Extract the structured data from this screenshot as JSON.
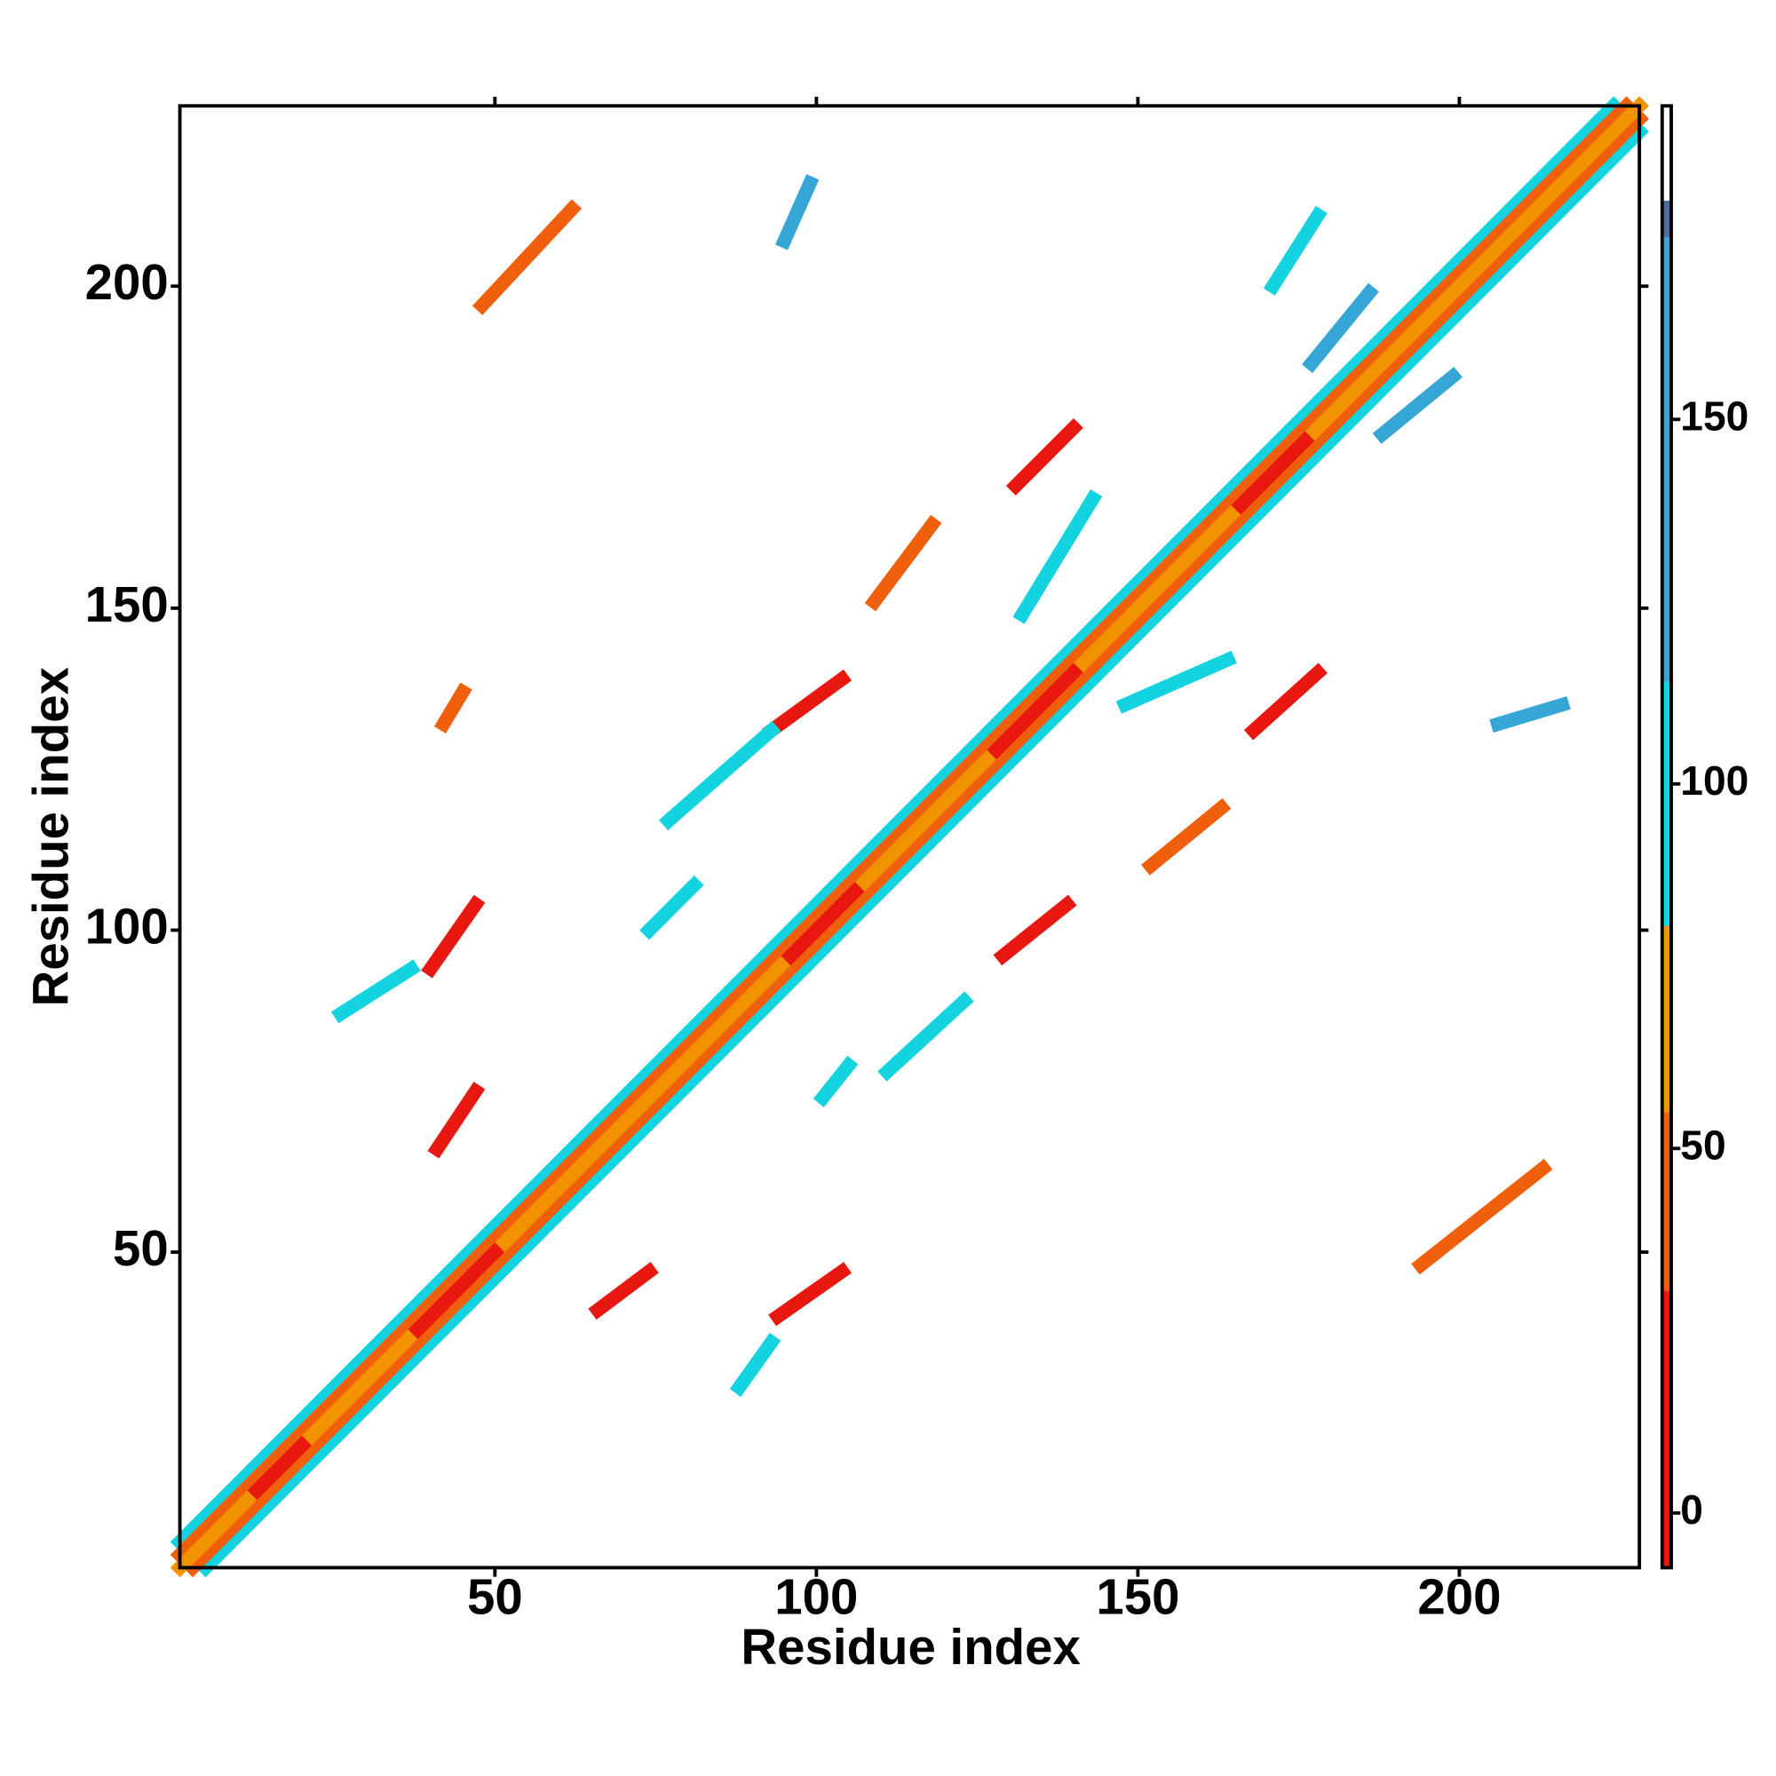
{
  "chart_data": {
    "type": "heatmap",
    "x_label": "Residue index",
    "y_label": "Residue index",
    "xlim": [
      1,
      228
    ],
    "ylim": [
      1,
      228
    ],
    "xticks": [
      50,
      100,
      150,
      200
    ],
    "yticks": [
      50,
      100,
      150,
      200
    ],
    "colorbar": {
      "lim": [
        -7.5,
        193
      ],
      "ticks": [
        0,
        50,
        100,
        150
      ],
      "bands": [
        {
          "from": -7.5,
          "to": 30.5,
          "color": "#e8170f"
        },
        {
          "from": 30.5,
          "to": 55,
          "color": "#f0600c"
        },
        {
          "from": 55,
          "to": 80.5,
          "color": "#f39200"
        },
        {
          "from": 80.5,
          "to": 114,
          "color": "#14d3e0"
        },
        {
          "from": 114,
          "to": 175,
          "color": "#35a6d6"
        },
        {
          "from": 175,
          "to": 180,
          "color": "#4a6fa5"
        },
        {
          "from": 180,
          "to": 193,
          "color": "#ffffff"
        }
      ]
    },
    "streaks": [
      {
        "x": [
          1,
          224
        ],
        "y": [
          5,
          228
        ],
        "value": 95
      },
      {
        "x": [
          5,
          228
        ],
        "y": [
          1,
          224
        ],
        "value": 95
      },
      {
        "x": [
          1,
          226
        ],
        "y": [
          3,
          228
        ],
        "value": 40
      },
      {
        "x": [
          3,
          228
        ],
        "y": [
          1,
          226
        ],
        "value": 40
      },
      {
        "x": [
          1,
          228
        ],
        "y": [
          1,
          228
        ],
        "value": 60
      },
      {
        "x": [
          13,
          20
        ],
        "y": [
          13,
          20
        ],
        "value": 5
      },
      {
        "x": [
          38,
          50
        ],
        "y": [
          38,
          50
        ],
        "value": 5
      },
      {
        "x": [
          96,
          106
        ],
        "y": [
          96,
          106
        ],
        "value": 5
      },
      {
        "x": [
          128,
          140
        ],
        "y": [
          128,
          140
        ],
        "value": 5
      },
      {
        "x": [
          166,
          176
        ],
        "y": [
          166,
          176
        ],
        "value": 5
      },
      {
        "x": [
          40,
          47
        ],
        "y": [
          94,
          104
        ],
        "value": 10
      },
      {
        "x": [
          94,
          104
        ],
        "y": [
          40,
          47
        ],
        "value": 10
      },
      {
        "x": [
          41,
          47
        ],
        "y": [
          66,
          75
        ],
        "value": 10
      },
      {
        "x": [
          66,
          74
        ],
        "y": [
          41,
          47
        ],
        "value": 10
      },
      {
        "x": [
          93,
          104
        ],
        "y": [
          131,
          139
        ],
        "value": 10
      },
      {
        "x": [
          129,
          139
        ],
        "y": [
          96,
          104
        ],
        "value": 10
      },
      {
        "x": [
          131,
          140
        ],
        "y": [
          169,
          178
        ],
        "value": 10
      },
      {
        "x": [
          168,
          178
        ],
        "y": [
          131,
          140
        ],
        "value": 10
      },
      {
        "x": [
          48,
          62
        ],
        "y": [
          197,
          212
        ],
        "value": 35
      },
      {
        "x": [
          194,
          213
        ],
        "y": [
          48,
          63
        ],
        "value": 35
      },
      {
        "x": [
          109,
          118
        ],
        "y": [
          151,
          163
        ],
        "value": 45
      },
      {
        "x": [
          152,
          163
        ],
        "y": [
          110,
          119
        ],
        "value": 45
      },
      {
        "x": [
          77,
          93
        ],
        "y": [
          117,
          131
        ],
        "value": 90
      },
      {
        "x": [
          111,
          123
        ],
        "y": [
          78,
          89
        ],
        "value": 90
      },
      {
        "x": [
          177,
          186
        ],
        "y": [
          188,
          199
        ],
        "value": 160
      },
      {
        "x": [
          188,
          199
        ],
        "y": [
          177,
          186
        ],
        "value": 160
      },
      {
        "x": [
          132,
          143
        ],
        "y": [
          149,
          167
        ],
        "value": 100
      },
      {
        "x": [
          148,
          164
        ],
        "y": [
          135,
          142
        ],
        "value": 100
      },
      {
        "x": [
          95,
          99
        ],
        "y": [
          207,
          216
        ],
        "value": 140
      },
      {
        "x": [
          206,
          216
        ],
        "y": [
          132,
          135
        ],
        "value": 140
      },
      {
        "x": [
          171,
          178
        ],
        "y": [
          200,
          211
        ],
        "value": 110
      },
      {
        "x": [
          42,
          45
        ],
        "y": [
          132,
          137
        ],
        "value": 40
      },
      {
        "x": [
          74,
          81
        ],
        "y": [
          100,
          107
        ],
        "value": 100
      },
      {
        "x": [
          101,
          105
        ],
        "y": [
          74,
          79
        ],
        "value": 100
      },
      {
        "x": [
          88,
          93
        ],
        "y": [
          29,
          36
        ],
        "value": 95
      },
      {
        "x": [
          26,
          37
        ],
        "y": [
          87,
          94
        ],
        "value": 95
      }
    ]
  }
}
